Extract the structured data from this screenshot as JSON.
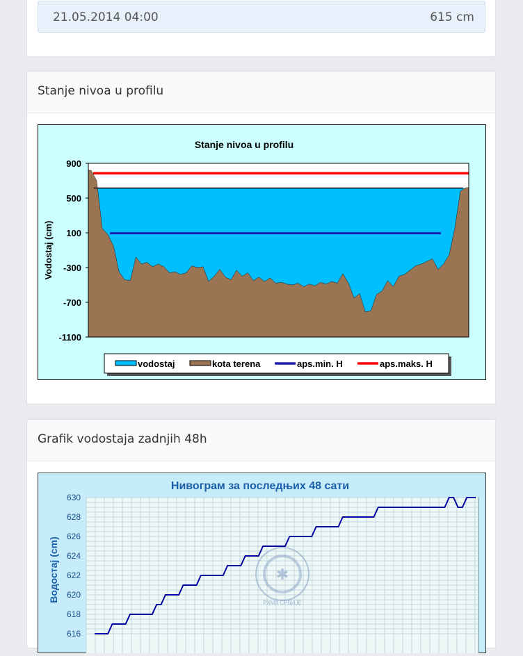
{
  "current_reading": {
    "datetime": "21.05.2014 04:00",
    "value": "615 cm"
  },
  "profile_card": {
    "title": "Stanje nivoa u profilu",
    "chart_data": {
      "type": "area",
      "title": "Stanje nivoa u profilu",
      "ylabel": "Vodostaj (cm)",
      "ylim": [
        -1100,
        900
      ],
      "yticks": [
        900,
        500,
        100,
        -300,
        -700,
        -1100
      ],
      "legend_position": "bottom",
      "legend": [
        "vodostaj",
        "kota terena",
        "aps.min. H",
        "aps.maks. H"
      ],
      "series": [
        {
          "name": "vodostaj",
          "value": 615,
          "color": "#00bfff"
        },
        {
          "name": "aps.min. H",
          "value": 95,
          "color": "#1f1fb4"
        },
        {
          "name": "aps.maks. H",
          "value": 785,
          "color": "#ff0000"
        }
      ],
      "terrain_values": [
        820,
        700,
        150,
        80,
        -50,
        -350,
        -440,
        -450,
        -180,
        -260,
        -240,
        -290,
        -260,
        -290,
        -360,
        -350,
        -380,
        -360,
        -280,
        -300,
        -290,
        -460,
        -400,
        -320,
        -410,
        -440,
        -330,
        -400,
        -360,
        -450,
        -410,
        -460,
        -420,
        -480,
        -470,
        -490,
        -500,
        -480,
        -520,
        -490,
        -510,
        -470,
        -490,
        -460,
        -480,
        -370,
        -480,
        -650,
        -600,
        -810,
        -800,
        -610,
        -570,
        -450,
        -520,
        -400,
        -380,
        -330,
        -280,
        -260,
        -230,
        -200,
        -320,
        -260,
        -150,
        150,
        580,
        620
      ],
      "colors": {
        "plot_bg": "#ffffff",
        "frame_bg": "#ccffff",
        "terrain": "#9b7553"
      }
    }
  },
  "graph_card": {
    "title": "Grafik vodostaja zadnjih 48h",
    "chart_data": {
      "type": "line",
      "title": "Нивограм за последњих 48 сати",
      "ylabel": "Водостај (cm)",
      "ylim": [
        616,
        630
      ],
      "yticks": [
        630,
        628,
        626,
        624,
        622,
        620,
        618,
        616
      ],
      "watermark": "РХМЗ СРБИЈЕ",
      "series": [
        {
          "name": "",
          "color": "#0000a0",
          "values": [
            616,
            616,
            617,
            617,
            618,
            618,
            618,
            619,
            620,
            620,
            621,
            621,
            622,
            622,
            622,
            623,
            623,
            624,
            624,
            625,
            625,
            625,
            626,
            626,
            626,
            627,
            627,
            627,
            628,
            628,
            628,
            628,
            629,
            629,
            629,
            629,
            629,
            629,
            629,
            629,
            630,
            629,
            630,
            630
          ]
        }
      ],
      "colors": {
        "frame_bg": "#c6ecfa",
        "plot_bg": "#eef9f7",
        "title": "#1a5fa8"
      }
    }
  }
}
